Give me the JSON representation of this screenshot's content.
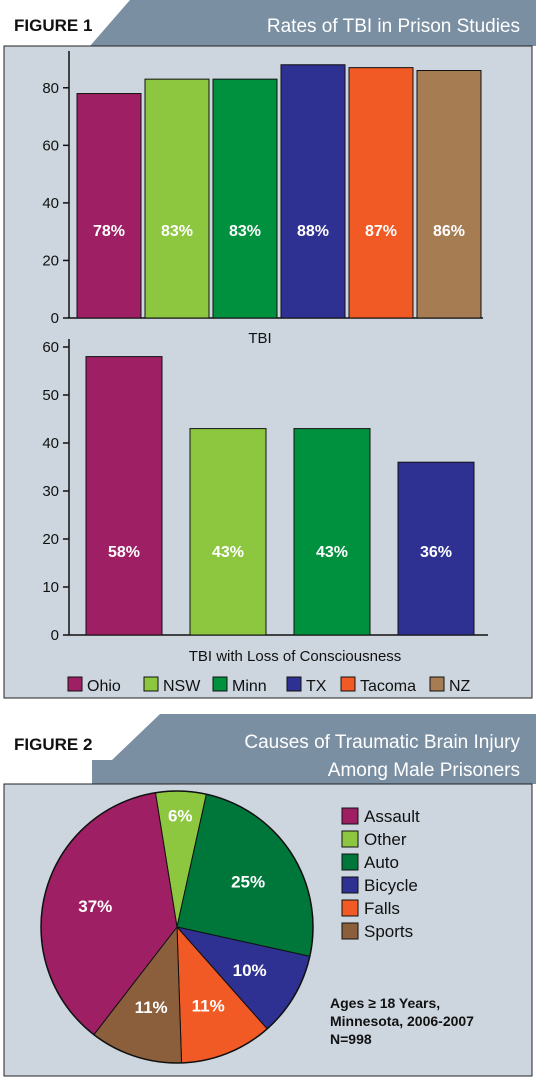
{
  "figure1": {
    "label": "FIGURE 1",
    "title": "Rates of TBI in Prison Studies",
    "colors": {
      "panel": "#cdd6df",
      "banner": "#7b8fa3",
      "label_bg": "#ffffff"
    }
  },
  "figure2": {
    "label": "FIGURE 2",
    "title_line1": "Causes of Traumatic Brain Injury",
    "title_line2": "Among Male Prisoners",
    "note_line1": "Ages ≥ 18 Years,",
    "note_line2": "Minnesota, 2006-2007",
    "note_line3": "N=998"
  },
  "legend1": [
    {
      "label": "Ohio",
      "color": "#9e1f63"
    },
    {
      "label": "NSW",
      "color": "#8dc63f"
    },
    {
      "label": "Minn",
      "color": "#00913f"
    },
    {
      "label": "TX",
      "color": "#2e3192"
    },
    {
      "label": "Tacoma",
      "color": "#f15a24"
    },
    {
      "label": "NZ",
      "color": "#a67c52"
    }
  ],
  "chart_data": [
    {
      "type": "bar",
      "xlabel": "TBI",
      "ylabel": "",
      "categories": [
        "Ohio",
        "NSW",
        "Minn",
        "TX",
        "Tacoma",
        "NZ"
      ],
      "values": [
        78,
        83,
        83,
        88,
        87,
        86
      ],
      "data_labels": [
        "78%",
        "83%",
        "83%",
        "88%",
        "87%",
        "86%"
      ],
      "colors": [
        "#9e1f63",
        "#8dc63f",
        "#00913f",
        "#2e3192",
        "#f15a24",
        "#a67c52"
      ],
      "ylim": [
        0,
        90
      ],
      "yticks": [
        0,
        20,
        40,
        60,
        80
      ],
      "grid": false
    },
    {
      "type": "bar",
      "xlabel": "TBI with Loss of Consciousness",
      "ylabel": "",
      "categories": [
        "Ohio",
        "NSW",
        "Minn",
        "TX"
      ],
      "values": [
        58,
        43,
        43,
        36
      ],
      "data_labels": [
        "58%",
        "43%",
        "43%",
        "36%"
      ],
      "colors": [
        "#9e1f63",
        "#8dc63f",
        "#00913f",
        "#2e3192"
      ],
      "ylim": [
        0,
        60
      ],
      "yticks": [
        0,
        10,
        20,
        30,
        40,
        50,
        60
      ],
      "grid": false
    },
    {
      "type": "pie",
      "categories": [
        "Assault",
        "Other",
        "Auto",
        "Bicycle",
        "Falls",
        "Sports"
      ],
      "values": [
        37,
        6,
        25,
        10,
        11,
        11
      ],
      "data_labels": [
        "37%",
        "6%",
        "25%",
        "10%",
        "11%",
        "11%"
      ],
      "colors": [
        "#9e1f63",
        "#8dc63f",
        "#00773a",
        "#2e3192",
        "#f15a24",
        "#8b5e3c"
      ],
      "legend": "right",
      "slice_order": [
        "Other",
        "Auto",
        "Bicycle",
        "Falls",
        "Sports",
        "Assault"
      ]
    }
  ]
}
